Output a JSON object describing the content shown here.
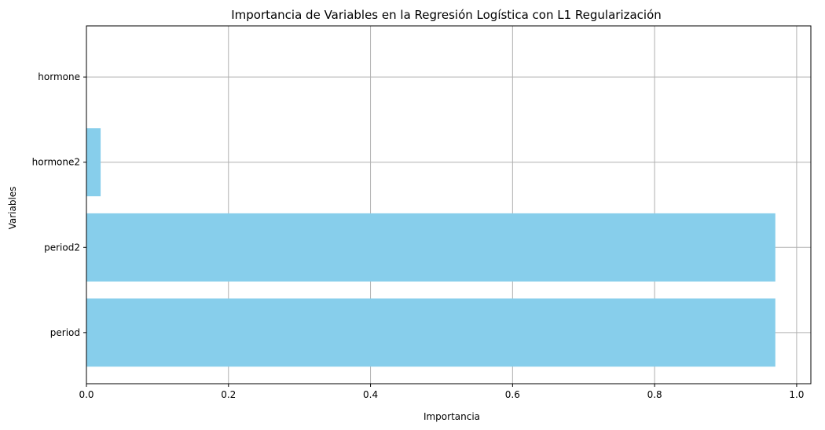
{
  "chart_data": {
    "type": "bar",
    "orientation": "horizontal",
    "title": "Importancia de Variables en la Regresión Logística con L1 Regularización",
    "xlabel": "Importancia",
    "ylabel": "Variables",
    "categories": [
      "period",
      "period2",
      "hormone2",
      "hormone"
    ],
    "values": [
      0.97,
      0.97,
      0.02,
      0.0
    ],
    "xlim": [
      0,
      1.02
    ],
    "x_ticks": [
      0.0,
      0.2,
      0.4,
      0.6,
      0.8,
      1.0
    ],
    "x_tick_labels": [
      "0.0",
      "0.2",
      "0.4",
      "0.6",
      "0.8",
      "1.0"
    ],
    "grid": true,
    "bar_color": "#87CEEB",
    "grid_color": "#b0b0b0"
  }
}
